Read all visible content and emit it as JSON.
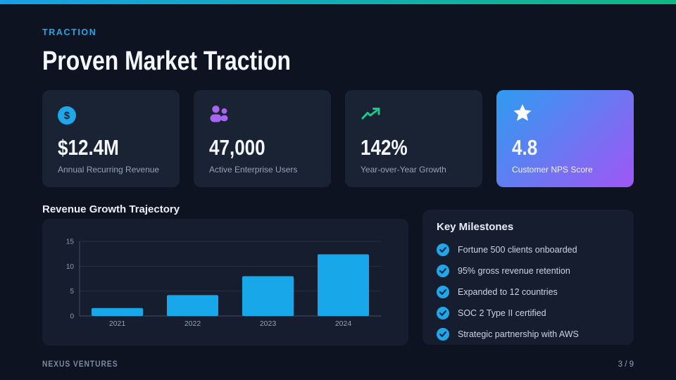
{
  "colors": {
    "page_bg": "#0d1321",
    "accent_blue": "#1fa7e9",
    "purple": "#a864f0",
    "green": "#16c98a",
    "topbar_from": "#18a0e8",
    "topbar_to": "#10b981",
    "nps_card_from": "#2e9cf0",
    "nps_card_to": "#a156f5",
    "bar_color": "#18a7e8"
  },
  "header": {
    "eyebrow": "TRACTION",
    "title": "Proven Market Traction"
  },
  "stats": [
    {
      "icon": "dollar-circle",
      "icon_glyph": "$",
      "value": "$12.4M",
      "label": "Annual Recurring Revenue"
    },
    {
      "icon": "users",
      "value": "47,000",
      "label": "Active Enterprise Users"
    },
    {
      "icon": "trend-up",
      "value": "142%",
      "label": "Year-over-Year Growth"
    },
    {
      "icon": "star",
      "value": "4.8",
      "label": "Customer NPS Score",
      "highlighted": true
    }
  ],
  "chart_data": {
    "type": "bar",
    "title": "Revenue Growth Trajectory",
    "categories": [
      "2021",
      "2022",
      "2023",
      "2024"
    ],
    "values": [
      1.6,
      4.2,
      8.0,
      12.4
    ],
    "ylim": [
      0,
      15
    ],
    "yticks": [
      0,
      5,
      10,
      15
    ],
    "grid": true,
    "legend": false,
    "bar_color": "#18a7e8"
  },
  "milestones": {
    "title": "Key Milestones",
    "items": [
      "Fortune 500 clients onboarded",
      "95% gross revenue retention",
      "Expanded to 12 countries",
      "SOC 2 Type II certified",
      "Strategic partnership with AWS"
    ]
  },
  "footer": {
    "company": "NEXUS VENTURES",
    "page": "3 / 9"
  }
}
